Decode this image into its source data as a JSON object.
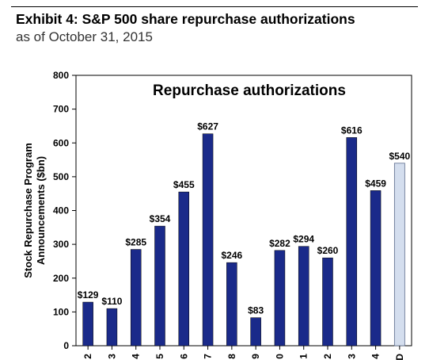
{
  "exhibit": {
    "title": "Exhibit 4: S&P 500 share repurchase authorizations",
    "subtitle": "as of October 31, 2015"
  },
  "colors": {
    "bar": "#1a2a8a",
    "bar_estimate": "#d4deee",
    "bar_stroke": "#000000"
  },
  "chart_data": {
    "type": "bar",
    "title": "Repurchase authorizations",
    "ylabel": "Stock Repurchase Program Announcements ($bn)",
    "xlabel": "",
    "ylim": [
      0,
      800
    ],
    "yticks": [
      0,
      100,
      200,
      300,
      400,
      500,
      600,
      700,
      800
    ],
    "grid": false,
    "categories": [
      "2",
      "3",
      "4",
      "5",
      "6",
      "7",
      "8",
      "9",
      "0",
      "1",
      "2",
      "3",
      "4",
      "D"
    ],
    "values": [
      129,
      110,
      285,
      354,
      455,
      627,
      246,
      83,
      282,
      294,
      260,
      616,
      459,
      540
    ],
    "labels": [
      "$129",
      "$110",
      "$285",
      "$354",
      "$455",
      "$627",
      "$246",
      "$83",
      "$282",
      "$294",
      "$260",
      "$616",
      "$459",
      "$540"
    ],
    "highlight_index": 13
  }
}
